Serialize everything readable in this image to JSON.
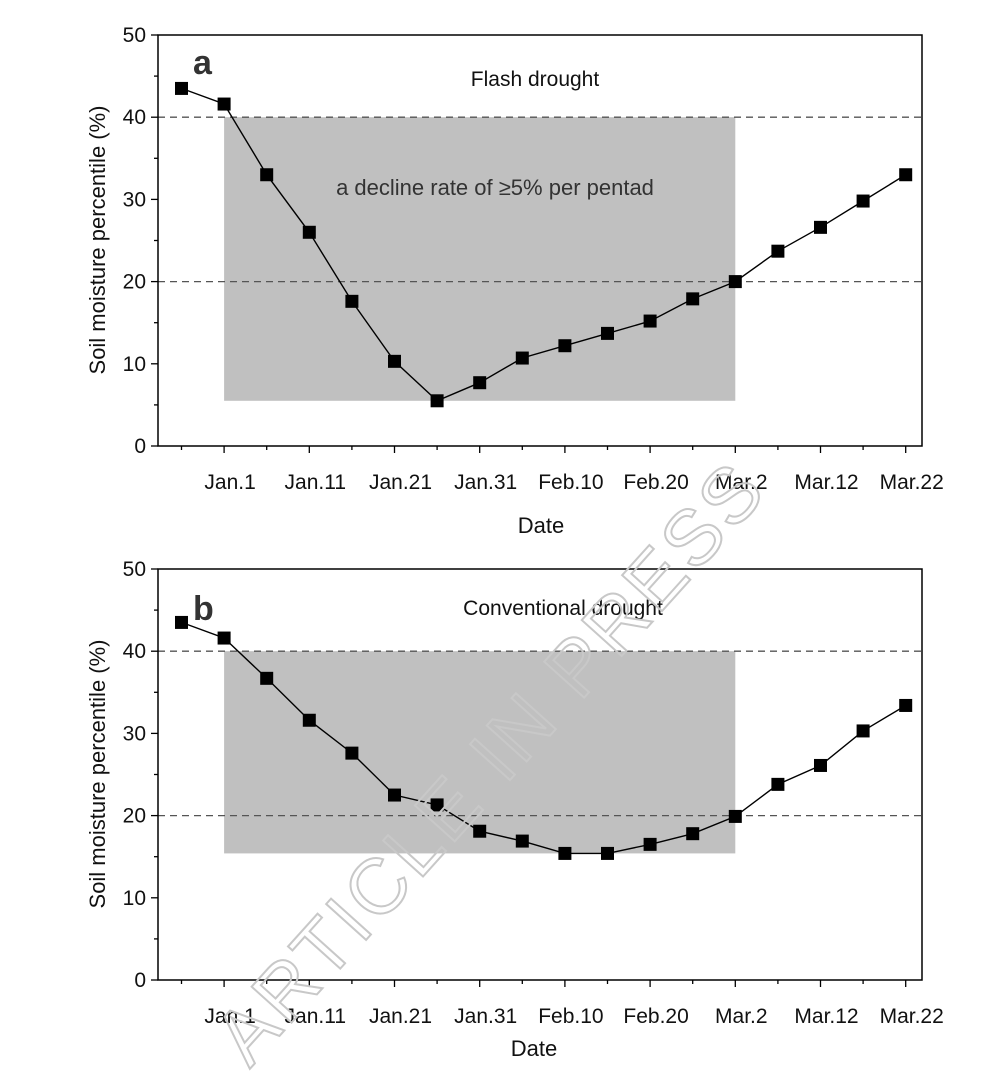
{
  "chart_data": [
    {
      "type": "line",
      "panel_label": "a",
      "title": "Flash drought",
      "annotation": "a decline rate of ≥5% per pentad",
      "xlabel": "Date",
      "ylabel": "Soil moisture percentile (%)",
      "ylim": [
        0,
        50
      ],
      "yticks": [
        "0",
        "10",
        "20",
        "30",
        "40",
        "50"
      ],
      "xtick_labels": [
        "Jan.1",
        "Jan.11",
        "Jan.21",
        "Jan.31",
        "Feb.10",
        "Feb.20",
        "Mar.2",
        "Mar.12",
        "Mar.22"
      ],
      "thresholds": [
        40,
        20
      ],
      "shaded_region": {
        "x_from_index": 1,
        "x_to_index": 13,
        "y_from": 5.5,
        "y_to": 40
      },
      "series": [
        {
          "name": "Soil moisture percentile",
          "values": [
            43.5,
            41.6,
            33.0,
            26.0,
            17.6,
            10.3,
            5.5,
            7.7,
            10.7,
            12.2,
            13.7,
            15.2,
            17.9,
            20.0,
            23.7,
            26.6,
            29.8,
            33.0
          ]
        }
      ]
    },
    {
      "type": "line",
      "panel_label": "b",
      "title": "Conventional drought",
      "xlabel": "Date",
      "ylabel": "Soil moisture percentile (%)",
      "ylim": [
        0,
        50
      ],
      "yticks": [
        "0",
        "10",
        "20",
        "30",
        "40",
        "50"
      ],
      "xtick_labels": [
        "Jan.1",
        "Jan.11",
        "Jan.21",
        "Jan.31",
        "Feb.10",
        "Feb.20",
        "Mar.2",
        "Mar.12",
        "Mar.22"
      ],
      "thresholds": [
        40,
        20
      ],
      "shaded_region": {
        "x_from_index": 1,
        "x_to_index": 13,
        "y_from": 15.4,
        "y_to": 40
      },
      "series": [
        {
          "name": "Soil moisture percentile",
          "values": [
            43.5,
            41.6,
            36.7,
            31.6,
            27.6,
            22.5,
            21.3,
            18.1,
            16.9,
            15.4,
            15.4,
            16.5,
            17.8,
            19.9,
            23.8,
            26.1,
            30.3,
            33.4
          ]
        }
      ]
    }
  ],
  "watermark": "ARTICLE IN PRESS",
  "colors": {
    "shade": "#c0c0c0",
    "line": "#000000",
    "marker": "#000000",
    "dashed": "#555555"
  }
}
